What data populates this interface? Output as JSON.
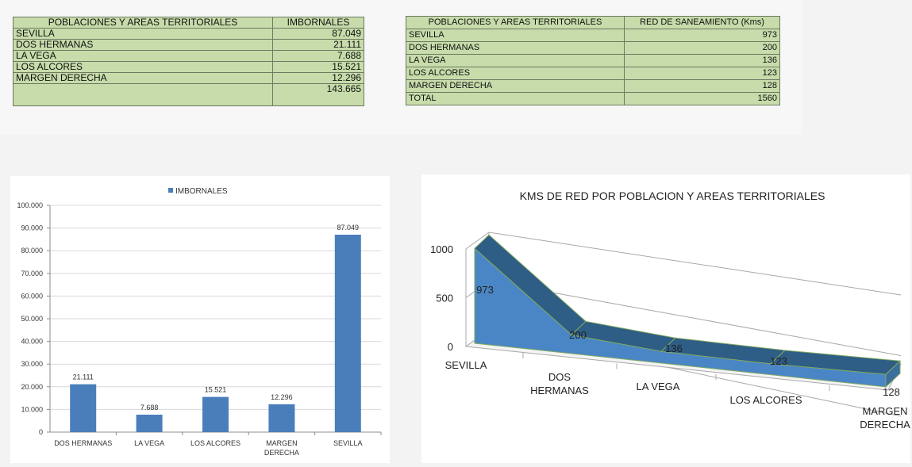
{
  "table_imbornales": {
    "headers": [
      "POBLACIONES Y AREAS TERRITORIALES",
      "IMBORNALES"
    ],
    "rows": [
      [
        "SEVILLA",
        "87.049"
      ],
      [
        "DOS HERMANAS",
        "21.111"
      ],
      [
        "LA VEGA",
        "7.688"
      ],
      [
        "LOS ALCORES",
        "15.521"
      ],
      [
        "MARGEN DERECHA",
        "12.296"
      ],
      [
        "",
        "143.665"
      ]
    ]
  },
  "table_red": {
    "headers": [
      "POBLACIONES Y AREAS TERRITORIALES",
      "RED DE SANEAMIENTO (Kms)"
    ],
    "rows": [
      [
        "SEVILLA",
        "973"
      ],
      [
        "DOS HERMANAS",
        "200"
      ],
      [
        "LA VEGA",
        "136"
      ],
      [
        "LOS ALCORES",
        "123"
      ],
      [
        "MARGEN DERECHA",
        "128"
      ],
      [
        "TOTAL",
        "1560"
      ]
    ]
  },
  "chart_data": [
    {
      "type": "bar",
      "title": "",
      "legend": "top",
      "series": [
        {
          "name": "IMBORNALES",
          "values": [
            21111,
            7688,
            15521,
            12296,
            87049
          ]
        }
      ],
      "categories": [
        [
          "DOS HERMANAS"
        ],
        [
          "LA VEGA"
        ],
        [
          "LOS ALCORES"
        ],
        [
          "MARGEN",
          "DERECHA"
        ],
        [
          "SEVILLA"
        ]
      ],
      "value_labels": [
        "21.111",
        "7.688",
        "15.521",
        "12.296",
        "87.049"
      ],
      "ylim": [
        0,
        100000
      ],
      "yticks": [
        0,
        10000,
        20000,
        30000,
        40000,
        50000,
        60000,
        70000,
        80000,
        90000,
        100000
      ],
      "ytick_labels": [
        "0",
        "10.000",
        "20.000",
        "30.000",
        "40.000",
        "50.000",
        "60.000",
        "70.000",
        "80.000",
        "90.000",
        "100.000"
      ],
      "grid": true,
      "color": "#4a7ebb"
    },
    {
      "type": "area",
      "title": "KMS DE RED POR POBLACION Y AREAS TERRITORIALES",
      "categories": [
        [
          "SEVILLA"
        ],
        [
          "DOS",
          "HERMANAS"
        ],
        [
          "LA VEGA"
        ],
        [
          "LOS ALCORES"
        ],
        [
          "MARGEN",
          "DERECHA"
        ]
      ],
      "values": [
        973,
        200,
        136,
        123,
        128
      ],
      "value_labels": [
        "973",
        "200",
        "136",
        "123",
        "128"
      ],
      "ylim": [
        0,
        1000
      ],
      "yticks": [
        0,
        500,
        1000
      ],
      "ytick_labels": [
        "0",
        "500",
        "1000"
      ],
      "grid": true,
      "color": "#4a86c5"
    }
  ]
}
